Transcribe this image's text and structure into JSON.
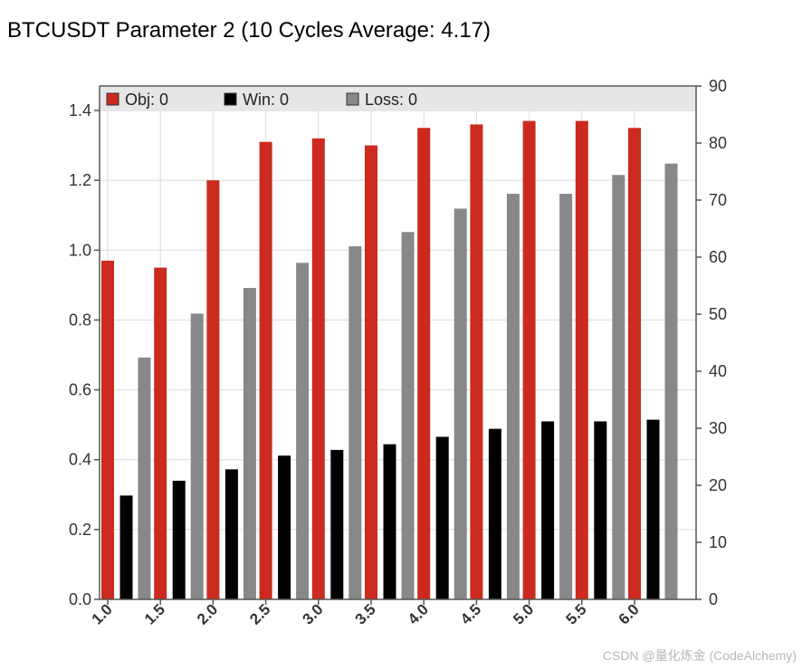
{
  "title": "BTCUSDT Parameter 2 (10 Cycles Average: 4.17)",
  "watermark": "CSDN @量化炼金 (CodeAlchemy)",
  "colors": {
    "obj": "#cc2a1e",
    "win": "#000000",
    "loss": "#888888",
    "legend_bg": "#e6e6e6",
    "grid": "#dddddd",
    "axis": "#555555"
  },
  "chart_data": {
    "type": "bar",
    "title": "BTCUSDT Parameter 2 (10 Cycles Average: 4.17)",
    "categories": [
      "1.0",
      "1.5",
      "2.0",
      "2.5",
      "3.0",
      "3.5",
      "4.0",
      "4.5",
      "5.0",
      "5.5",
      "6.0"
    ],
    "series": [
      {
        "name": "Obj",
        "legend_label": "Obj: 0",
        "axis": "left",
        "values": [
          0.97,
          0.95,
          1.2,
          1.31,
          1.32,
          1.3,
          1.35,
          1.36,
          1.37,
          1.37,
          1.35
        ]
      },
      {
        "name": "Win",
        "legend_label": "Win: 0",
        "axis": "right",
        "values": [
          18.2,
          20.8,
          22.8,
          25.2,
          26.2,
          27.2,
          28.5,
          29.9,
          31.2,
          31.2,
          31.5
        ]
      },
      {
        "name": "Loss",
        "legend_label": "Loss: 0",
        "axis": "right",
        "values": [
          42.4,
          50.1,
          54.6,
          59.0,
          61.9,
          64.4,
          68.5,
          71.1,
          71.1,
          74.4,
          76.4
        ]
      }
    ],
    "left_axis": {
      "ylim": [
        0,
        1.47
      ],
      "ticks": [
        "0.0",
        "0.2",
        "0.4",
        "0.6",
        "0.8",
        "1.0",
        "1.2",
        "1.4"
      ],
      "tick_values": [
        0,
        0.2,
        0.4,
        0.6,
        0.8,
        1.0,
        1.2,
        1.4
      ]
    },
    "right_axis": {
      "ylim": [
        0,
        90
      ],
      "ticks": [
        "0",
        "10",
        "20",
        "30",
        "40",
        "50",
        "60",
        "70",
        "80",
        "90"
      ],
      "tick_values": [
        0,
        10,
        20,
        30,
        40,
        50,
        60,
        70,
        80,
        90
      ]
    },
    "xlabel": "",
    "ylabel": "",
    "grid": true,
    "legend_position": "top"
  }
}
